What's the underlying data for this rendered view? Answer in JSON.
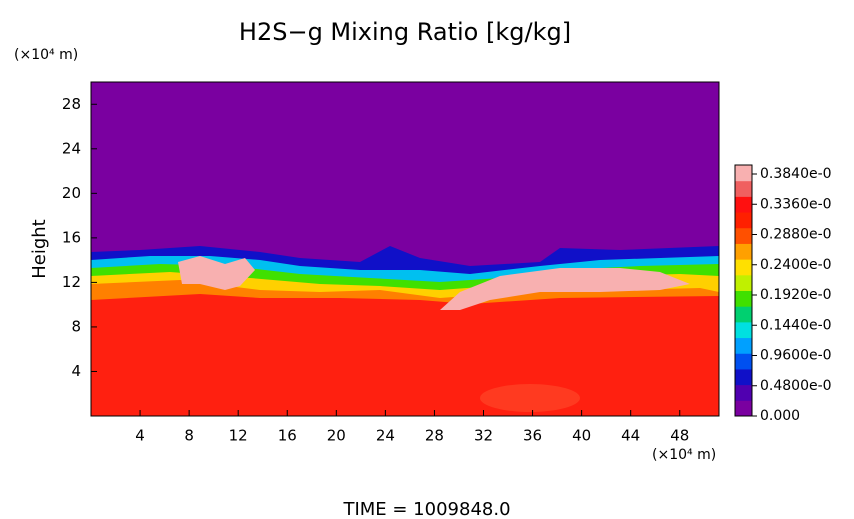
{
  "chart_data": {
    "type": "contour",
    "title": "H2S−g Mixing Ratio [kg/kg]",
    "y_unit": "(×10⁴ m)",
    "x_unit": "(×10⁴ m)",
    "ylabel": "Height",
    "footer": "TIME = 1009848.0",
    "xlim": [
      0,
      51.2
    ],
    "xticks": [
      4,
      8,
      12,
      16,
      20,
      24,
      28,
      32,
      36,
      40,
      44,
      48
    ],
    "ylim": [
      0,
      30
    ],
    "yticks": [
      4,
      8,
      12,
      16,
      20,
      24,
      28
    ],
    "colorbar_labels": [
      "0.3840e-0",
      "0.3360e-0",
      "0.2880e-0",
      "0.2400e-0",
      "0.1920e-0",
      "0.1440e-0",
      "0.9600e-0",
      "0.4800e-0",
      "0.000"
    ],
    "colormap": [
      "#7a00a0",
      "#5000b0",
      "#1010c8",
      "#0050f0",
      "#00a0ff",
      "#00e0e0",
      "#00d070",
      "#40e000",
      "#c0f000",
      "#ffe000",
      "#ffa000",
      "#ff5000",
      "#ff2000",
      "#ff1010",
      "#f06060",
      "#f8b0b0"
    ]
  }
}
